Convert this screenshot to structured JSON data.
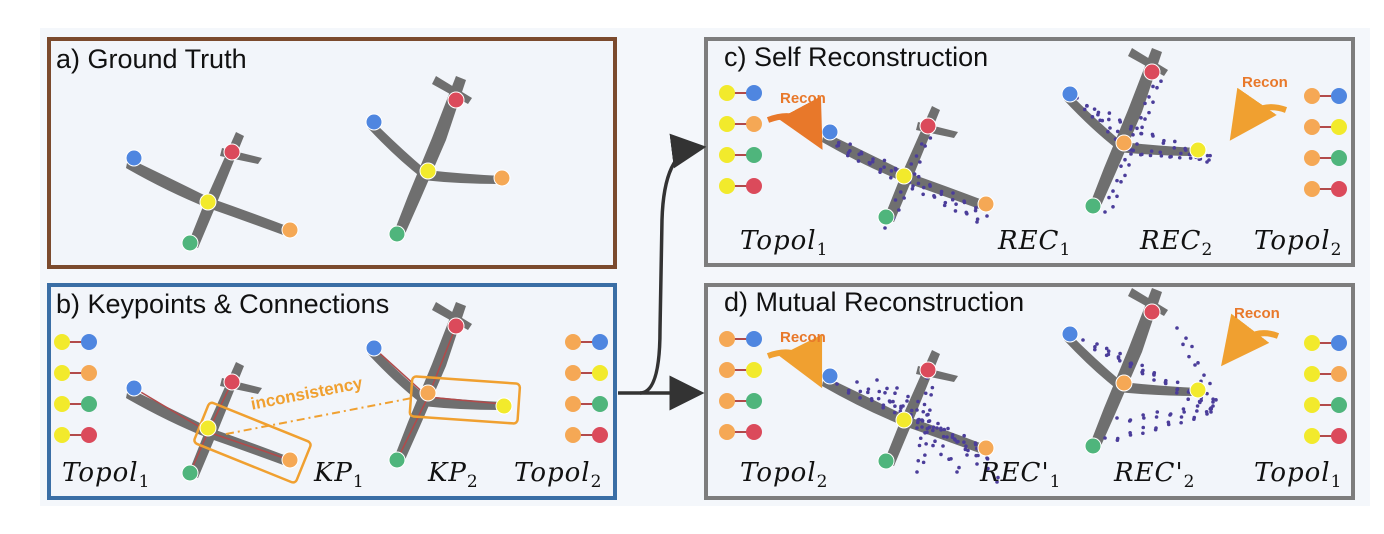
{
  "panels": {
    "a": {
      "title": "a) Ground Truth"
    },
    "b": {
      "title": "b) Keypoints & Connections",
      "inconsistency": "inconsistency"
    },
    "c": {
      "title": "c) Self Reconstruction"
    },
    "d": {
      "title": "d) Mutual Reconstruction"
    }
  },
  "labels": {
    "recon": "Recon",
    "topol": "Topol",
    "kp": "KP",
    "rec": "REC",
    "rec_prime": "REC'",
    "sub1": "1",
    "sub2": "2"
  },
  "colors": {
    "blue": "#4f86e0",
    "orange": "#f5a855",
    "yellow": "#f2ea2c",
    "green": "#4fb57c",
    "red": "#db4a5b",
    "link": "#b24a4a",
    "plane": "#6f6f6f",
    "dots": "#4b3d9a",
    "box": "#f0a030",
    "arrow": "#333333"
  },
  "topology": {
    "topol1_pairs": [
      [
        "yellow",
        "blue"
      ],
      [
        "yellow",
        "orange"
      ],
      [
        "yellow",
        "green"
      ],
      [
        "yellow",
        "red"
      ]
    ],
    "topol2_pairs": [
      [
        "orange",
        "blue"
      ],
      [
        "orange",
        "yellow"
      ],
      [
        "orange",
        "green"
      ],
      [
        "orange",
        "red"
      ]
    ]
  }
}
